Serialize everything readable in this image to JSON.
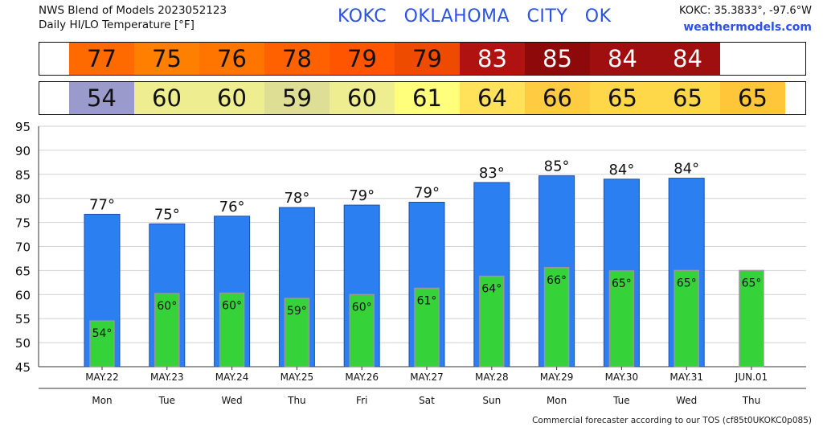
{
  "header": {
    "line1": "NWS Blend of Models 2023052123",
    "line2": "Daily HI/LO Temperature [°F]",
    "station_title": "KOKC   OKLAHOMA CITY   OK",
    "coords": "KOKC: 35.3833°, -97.6°W",
    "site": "weathermodels.com"
  },
  "footer": "Commercial forecaster according to our TOS (cf85t0UKOKC0p085)",
  "hi_strip": [
    {
      "label": "77",
      "color": "#ff6a00",
      "text": "#111111"
    },
    {
      "label": "75",
      "color": "#ff7f00",
      "text": "#111111"
    },
    {
      "label": "76",
      "color": "#ff7500",
      "text": "#111111"
    },
    {
      "label": "78",
      "color": "#ff6000",
      "text": "#111111"
    },
    {
      "label": "79",
      "color": "#ff5500",
      "text": "#111111"
    },
    {
      "label": "79",
      "color": "#ee4a00",
      "text": "#111111"
    },
    {
      "label": "83",
      "color": "#b01212",
      "text": "#ffffff"
    },
    {
      "label": "85",
      "color": "#8e0a0a",
      "text": "#ffffff"
    },
    {
      "label": "84",
      "color": "#a00f0f",
      "text": "#ffffff"
    },
    {
      "label": "84",
      "color": "#a00f0f",
      "text": "#ffffff"
    }
  ],
  "lo_strip": [
    {
      "label": "54",
      "color": "#9a9acc",
      "text": "#111111"
    },
    {
      "label": "60",
      "color": "#eeee90",
      "text": "#111111"
    },
    {
      "label": "60",
      "color": "#eeee90",
      "text": "#111111"
    },
    {
      "label": "59",
      "color": "#dede95",
      "text": "#111111"
    },
    {
      "label": "60",
      "color": "#eeee90",
      "text": "#111111"
    },
    {
      "label": "61",
      "color": "#ffff7c",
      "text": "#111111"
    },
    {
      "label": "64",
      "color": "#ffe25a",
      "text": "#111111"
    },
    {
      "label": "66",
      "color": "#ffcb40",
      "text": "#111111"
    },
    {
      "label": "65",
      "color": "#ffd84a",
      "text": "#111111"
    },
    {
      "label": "65",
      "color": "#ffd84a",
      "text": "#111111"
    },
    {
      "label": "65",
      "color": "#ffc63a",
      "text": "#111111"
    }
  ],
  "chart_data": {
    "type": "bar",
    "categories": [
      "MAY.22",
      "MAY.23",
      "MAY.24",
      "MAY.25",
      "MAY.26",
      "MAY.27",
      "MAY.28",
      "MAY.29",
      "MAY.30",
      "MAY.31",
      "JUN.01"
    ],
    "weekdays": [
      "Mon",
      "Tue",
      "Wed",
      "Thu",
      "Fri",
      "Sat",
      "Sun",
      "Mon",
      "Tue",
      "Wed",
      "Thu"
    ],
    "series": [
      {
        "values": [
          76.7,
          74.7,
          76.3,
          78.1,
          78.6,
          79.2,
          83.3,
          84.7,
          84.0,
          84.2,
          null
        ],
        "labels": [
          "77°",
          "75°",
          "76°",
          "78°",
          "79°",
          "79°",
          "83°",
          "85°",
          "84°",
          "84°",
          ""
        ],
        "color": "#2b7ff0"
      },
      {
        "values": [
          54.5,
          60.2,
          60.3,
          59.2,
          60.0,
          61.3,
          63.8,
          65.6,
          64.9,
          65.0,
          65.0
        ],
        "labels": [
          "54°",
          "60°",
          "60°",
          "59°",
          "60°",
          "61°",
          "64°",
          "66°",
          "65°",
          "65°",
          "65°"
        ],
        "color": "#36d23a"
      }
    ],
    "ylim": [
      45,
      95
    ],
    "yticks": [
      45,
      50,
      55,
      60,
      65,
      70,
      75,
      80,
      85,
      90,
      95
    ],
    "grid": true
  }
}
